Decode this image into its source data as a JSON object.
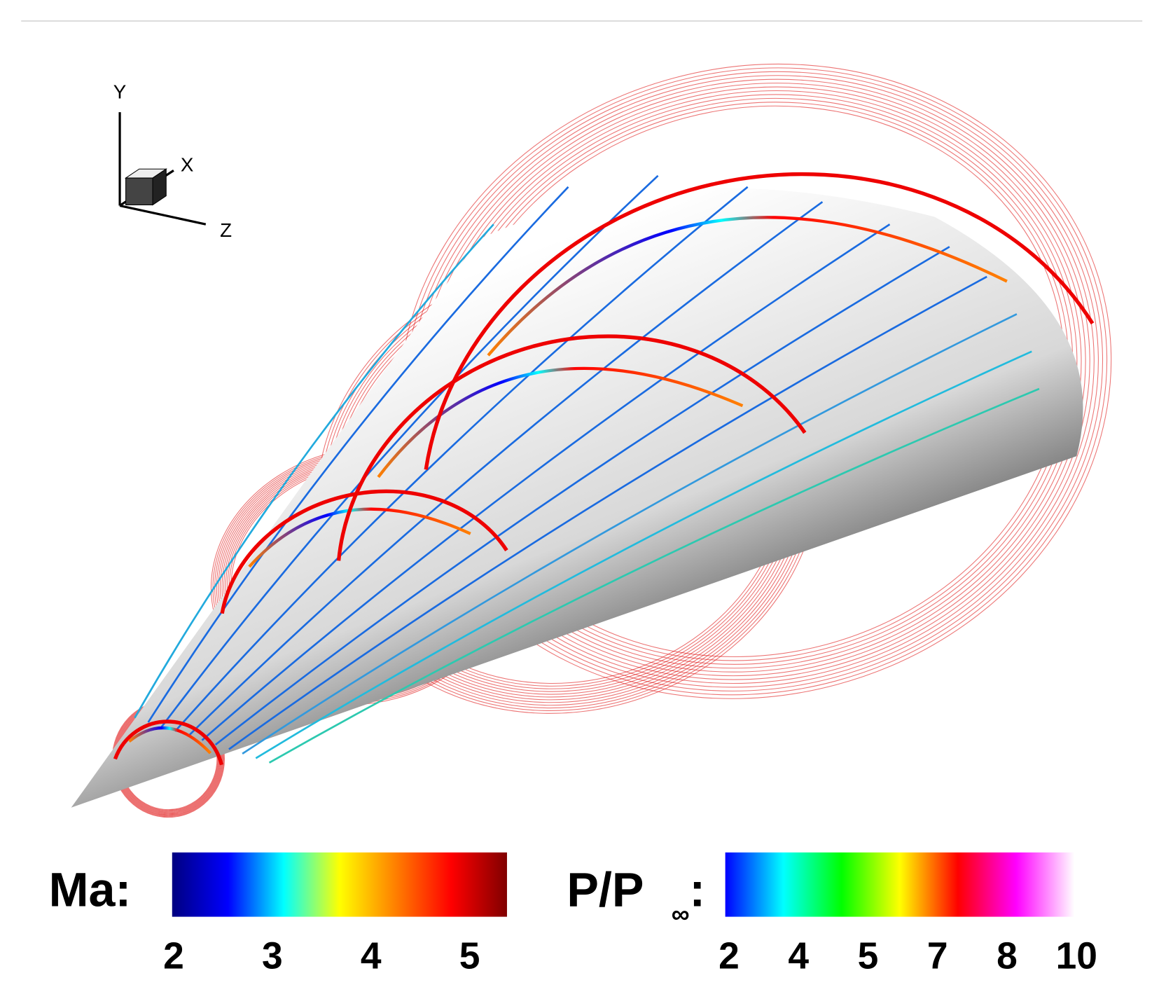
{
  "axes_triad": {
    "y": "Y",
    "x": "X",
    "z": "Z"
  },
  "colorbars": [
    {
      "label": "Ma:",
      "ticks": [
        2,
        3,
        4,
        5
      ],
      "colors": [
        "#000080",
        "#0000ff",
        "#00ffff",
        "#ffff00",
        "#ff8000",
        "#ff0000",
        "#800000"
      ]
    },
    {
      "label": "P/P",
      "label_sub": "∞",
      "label_end": ":",
      "ticks": [
        2,
        4,
        5,
        7,
        8,
        10
      ],
      "colors": [
        "#0000ff",
        "#00ffff",
        "#00ff00",
        "#ffff00",
        "#ff0000",
        "#ff00ff",
        "#ffffff"
      ]
    }
  ]
}
